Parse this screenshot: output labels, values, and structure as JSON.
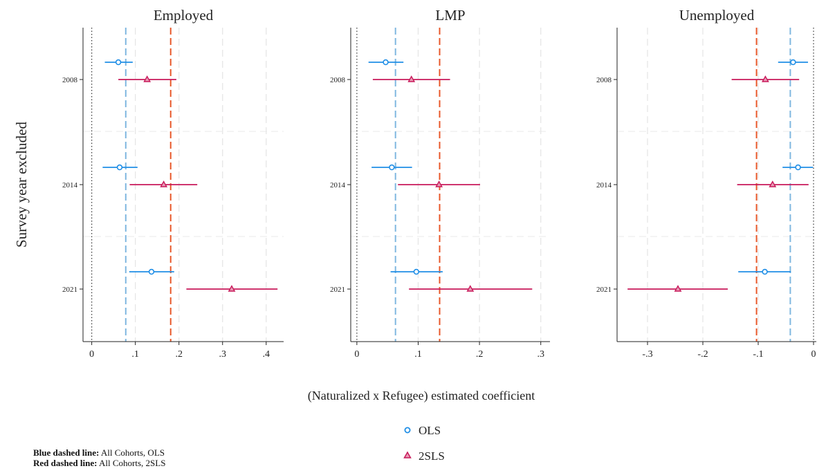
{
  "chart_data": {
    "type": "coefficient-plot",
    "ylabel": "Survey year excluded",
    "xlabel": "(Naturalized x Refugee) estimated coefficient",
    "categories": [
      "2008",
      "2014",
      "2021"
    ],
    "legend": {
      "placement": "bottom-center",
      "entries": [
        {
          "name": "OLS",
          "marker": "circle",
          "color": "#1f8ee6"
        },
        {
          "name": "2SLS",
          "marker": "triangle",
          "color": "#c8185a"
        }
      ]
    },
    "reference_line_colors": {
      "ols": "#7fb7e0",
      "tsls": "#e8582a"
    },
    "panels": [
      {
        "title": "Employed",
        "xlim": [
          -0.02,
          0.44
        ],
        "ticks": [
          0,
          0.1,
          0.2,
          0.3,
          0.4
        ],
        "tick_labels": [
          "0",
          ".1",
          ".2",
          ".3",
          ".4"
        ],
        "ref_ols": 0.078,
        "ref_tsls": 0.181,
        "series": [
          {
            "name": "OLS",
            "points": [
              {
                "category": "2008",
                "estimate": 0.061,
                "ci_low": 0.03,
                "ci_high": 0.094
              },
              {
                "category": "2014",
                "estimate": 0.064,
                "ci_low": 0.025,
                "ci_high": 0.105
              },
              {
                "category": "2021",
                "estimate": 0.137,
                "ci_low": 0.086,
                "ci_high": 0.189
              }
            ]
          },
          {
            "name": "2SLS",
            "points": [
              {
                "category": "2008",
                "estimate": 0.127,
                "ci_low": 0.061,
                "ci_high": 0.194
              },
              {
                "category": "2014",
                "estimate": 0.165,
                "ci_low": 0.087,
                "ci_high": 0.242
              },
              {
                "category": "2021",
                "estimate": 0.321,
                "ci_low": 0.217,
                "ci_high": 0.426
              }
            ]
          }
        ]
      },
      {
        "title": "LMP",
        "xlim": [
          -0.01,
          0.315
        ],
        "ticks": [
          0,
          0.1,
          0.2,
          0.3
        ],
        "tick_labels": [
          "0",
          ".1",
          ".2",
          ".3"
        ],
        "ref_ols": 0.063,
        "ref_tsls": 0.135,
        "series": [
          {
            "name": "OLS",
            "points": [
              {
                "category": "2008",
                "estimate": 0.047,
                "ci_low": 0.019,
                "ci_high": 0.076
              },
              {
                "category": "2014",
                "estimate": 0.057,
                "ci_low": 0.024,
                "ci_high": 0.09
              },
              {
                "category": "2021",
                "estimate": 0.097,
                "ci_low": 0.055,
                "ci_high": 0.14
              }
            ]
          },
          {
            "name": "2SLS",
            "points": [
              {
                "category": "2008",
                "estimate": 0.089,
                "ci_low": 0.026,
                "ci_high": 0.152
              },
              {
                "category": "2014",
                "estimate": 0.134,
                "ci_low": 0.067,
                "ci_high": 0.201
              },
              {
                "category": "2021",
                "estimate": 0.185,
                "ci_low": 0.085,
                "ci_high": 0.286
              }
            ]
          }
        ]
      },
      {
        "title": "Unemployed",
        "xlim": [
          -0.355,
          0.005
        ],
        "ticks": [
          -0.3,
          -0.2,
          -0.1,
          0
        ],
        "tick_labels": [
          "-.3",
          "-.2",
          "-.1",
          "0"
        ],
        "ref_ols": -0.042,
        "ref_tsls": -0.103,
        "series": [
          {
            "name": "OLS",
            "points": [
              {
                "category": "2008",
                "estimate": -0.037,
                "ci_low": -0.064,
                "ci_high": -0.01
              },
              {
                "category": "2014",
                "estimate": -0.028,
                "ci_low": -0.056,
                "ci_high": -0.001
              },
              {
                "category": "2021",
                "estimate": -0.088,
                "ci_low": -0.136,
                "ci_high": -0.041
              }
            ]
          },
          {
            "name": "2SLS",
            "points": [
              {
                "category": "2008",
                "estimate": -0.087,
                "ci_low": -0.148,
                "ci_high": -0.026
              },
              {
                "category": "2014",
                "estimate": -0.074,
                "ci_low": -0.138,
                "ci_high": -0.009
              },
              {
                "category": "2021",
                "estimate": -0.245,
                "ci_low": -0.336,
                "ci_high": -0.155
              }
            ]
          }
        ]
      }
    ]
  },
  "notes": {
    "blue_label": "Blue dashed line:",
    "blue_text": " All Cohorts, OLS",
    "red_label": "Red dashed line:",
    "red_text": " All Cohorts, 2SLS"
  }
}
